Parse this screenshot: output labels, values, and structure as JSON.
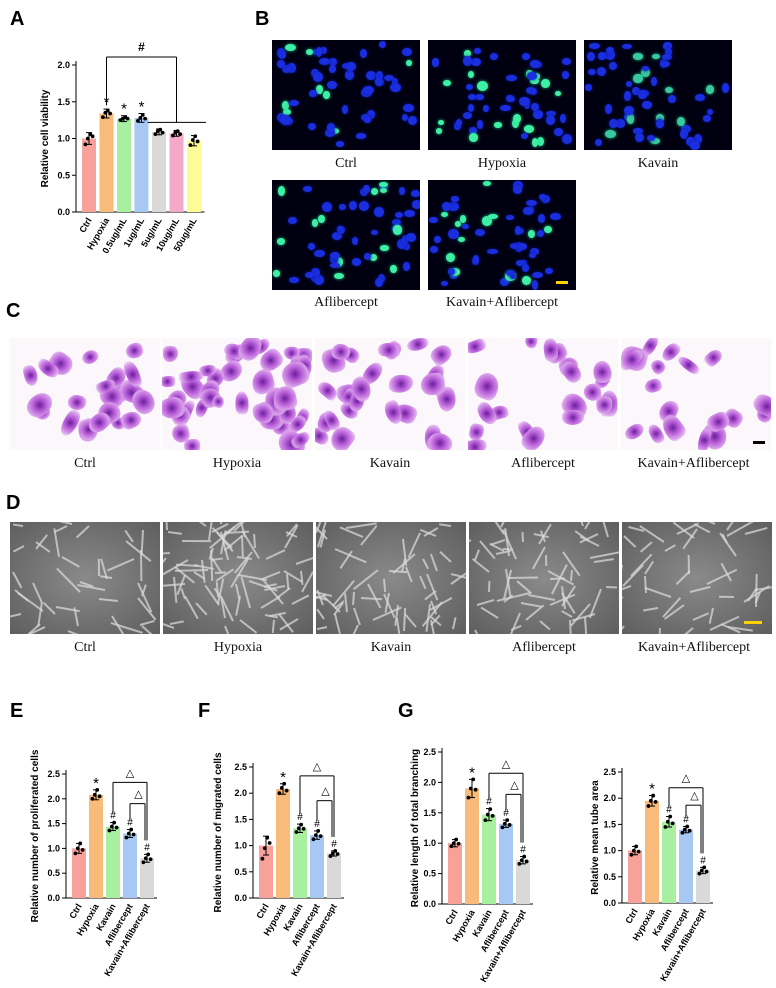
{
  "panels": {
    "a": "A",
    "b": "B",
    "c": "C",
    "d": "D",
    "e": "E",
    "f": "F",
    "g": "G"
  },
  "panel_b": {
    "captions": [
      "Ctrl",
      "Hypoxia",
      "Kavain",
      "Aflibercept",
      "Kavain+Aflibercept"
    ]
  },
  "panel_c": {
    "captions": [
      "Ctrl",
      "Hypoxia",
      "Kavain",
      "Aflibercept",
      "Kavain+Aflibercept"
    ]
  },
  "panel_d": {
    "captions": [
      "Ctrl",
      "Hypoxia",
      "Kavain",
      "Aflibercept",
      "Kavain+Aflibercept"
    ]
  },
  "colors": {
    "ctrl": "#f7a19a",
    "hypoxia": "#f9bb7a",
    "green": "#a8f0a0",
    "blue": "#a6c8f2",
    "gray": "#d9d9d9",
    "pink": "#f4a9c8",
    "yellow": "#fdfb95",
    "scalebar": "#ffd000"
  },
  "chart_data": [
    {
      "panel": "A",
      "type": "bar",
      "ylabel": "Relative cell viability",
      "ylim": [
        0,
        2.0
      ],
      "yticks": [
        "0.0",
        "0.5",
        "1.0",
        "1.5",
        "2.0"
      ],
      "categories": [
        "Ctrl",
        "Hypoxia",
        "0.5ug/mL",
        "1ug/mL",
        "5ug/mL",
        "10ug/mL",
        "50ug/mL"
      ],
      "values": [
        1.0,
        1.34,
        1.27,
        1.28,
        1.09,
        1.07,
        0.97
      ],
      "errors": [
        0.08,
        0.06,
        0.04,
        0.06,
        0.04,
        0.04,
        0.07
      ],
      "points": [
        [
          0.92,
          1.0,
          1.06,
          1.03
        ],
        [
          1.29,
          1.35,
          1.38,
          1.34
        ],
        [
          1.25,
          1.27,
          1.29,
          1.27
        ],
        [
          1.24,
          1.28,
          1.32,
          1.27
        ],
        [
          1.06,
          1.1,
          1.12,
          1.08
        ],
        [
          1.04,
          1.08,
          1.1,
          1.06
        ],
        [
          0.91,
          0.98,
          1.03,
          0.96
        ]
      ],
      "colors": [
        "#f7a19a",
        "#f9bb7a",
        "#a8f0a0",
        "#a6c8f2",
        "#d9d9d9",
        "#f4a9c8",
        "#fdfb95"
      ],
      "marks": [
        "",
        "*",
        "*",
        "*",
        "",
        "",
        ""
      ],
      "bracket_mark": "#"
    },
    {
      "panel": "E",
      "type": "bar",
      "ylabel": "Relative number of proliferated cells",
      "ylim": [
        0,
        2.5
      ],
      "yticks": [
        "0.0",
        "0.5",
        "1.0",
        "1.5",
        "2.0",
        "2.5"
      ],
      "categories": [
        "Ctrl",
        "Hypoxia",
        "Kavain",
        "Aflibercept",
        "Kavain+Aflibercept"
      ],
      "values": [
        1.0,
        2.08,
        1.44,
        1.3,
        0.8
      ],
      "errors": [
        0.1,
        0.1,
        0.08,
        0.08,
        0.08
      ],
      "points": [
        [
          0.9,
          1.0,
          1.1,
          0.97
        ],
        [
          2.0,
          2.08,
          2.18,
          2.05
        ],
        [
          1.36,
          1.44,
          1.52,
          1.42
        ],
        [
          1.22,
          1.3,
          1.38,
          1.28
        ],
        [
          0.72,
          0.8,
          0.88,
          0.78
        ]
      ],
      "colors": [
        "#f7a19a",
        "#f9bb7a",
        "#a8f0a0",
        "#a6c8f2",
        "#d9d9d9"
      ],
      "marks": [
        "",
        "*",
        "#",
        "#",
        "#"
      ],
      "bracket_mark": "△"
    },
    {
      "panel": "F",
      "type": "bar",
      "ylabel": "Relative number of migrated cells",
      "ylim": [
        0,
        2.5
      ],
      "yticks": [
        "0.0",
        "0.5",
        "1.0",
        "1.5",
        "2.0",
        "2.5"
      ],
      "categories": [
        "Ctrl",
        "Hypoxia",
        "Kavain",
        "Aflibercept",
        "Kavain+Aflibercept"
      ],
      "values": [
        1.0,
        2.08,
        1.33,
        1.2,
        0.85
      ],
      "errors": [
        0.18,
        0.1,
        0.08,
        0.08,
        0.05
      ],
      "points": [
        [
          0.75,
          0.95,
          1.15,
          1.05
        ],
        [
          2.0,
          2.1,
          2.18,
          2.05
        ],
        [
          1.26,
          1.33,
          1.4,
          1.32
        ],
        [
          1.12,
          1.2,
          1.28,
          1.18
        ],
        [
          0.8,
          0.85,
          0.9,
          0.84
        ]
      ],
      "colors": [
        "#f7a19a",
        "#f9bb7a",
        "#a8f0a0",
        "#a6c8f2",
        "#d9d9d9"
      ],
      "marks": [
        "",
        "*",
        "#",
        "#",
        "#"
      ],
      "bracket_mark": "△"
    },
    {
      "panel": "G",
      "type": "bar",
      "ylabel": "Relative length of total branching",
      "ylim": [
        0,
        2.5
      ],
      "yticks": [
        "0.0",
        "0.5",
        "1.0",
        "1.5",
        "2.0",
        "2.5"
      ],
      "categories": [
        "Ctrl",
        "Hypoxia",
        "Kavain",
        "Aflibercept",
        "Kavain+Aflibercept"
      ],
      "values": [
        1.0,
        1.9,
        1.47,
        1.32,
        0.72
      ],
      "errors": [
        0.06,
        0.15,
        0.1,
        0.06,
        0.06
      ],
      "points": [
        [
          0.95,
          1.0,
          1.06,
          0.99
        ],
        [
          1.75,
          1.9,
          2.05,
          1.88
        ],
        [
          1.38,
          1.47,
          1.56,
          1.45
        ],
        [
          1.26,
          1.32,
          1.38,
          1.3
        ],
        [
          0.66,
          0.72,
          0.78,
          0.7
        ]
      ],
      "colors": [
        "#f7a19a",
        "#f9bb7a",
        "#a8f0a0",
        "#a6c8f2",
        "#d9d9d9"
      ],
      "marks": [
        "",
        "*",
        "#",
        "#",
        "#"
      ],
      "bracket_mark": "△"
    },
    {
      "panel": "G",
      "type": "bar",
      "ylabel": "Relative mean tube area",
      "ylim": [
        0,
        2.5
      ],
      "yticks": [
        "0.0",
        "0.5",
        "1.0",
        "1.5",
        "2.0",
        "2.5"
      ],
      "categories": [
        "Ctrl",
        "Hypoxia",
        "Kavain",
        "Aflibercept",
        "Kavain+Aflibercept"
      ],
      "values": [
        1.0,
        1.95,
        1.55,
        1.4,
        0.62
      ],
      "errors": [
        0.08,
        0.1,
        0.1,
        0.06,
        0.06
      ],
      "points": [
        [
          0.92,
          1.0,
          1.08,
          0.98
        ],
        [
          1.85,
          1.95,
          2.05,
          1.93
        ],
        [
          1.45,
          1.55,
          1.65,
          1.52
        ],
        [
          1.34,
          1.4,
          1.46,
          1.38
        ],
        [
          0.56,
          0.62,
          0.68,
          0.6
        ]
      ],
      "colors": [
        "#f7a19a",
        "#f9bb7a",
        "#a8f0a0",
        "#a6c8f2",
        "#d9d9d9"
      ],
      "marks": [
        "",
        "*",
        "#",
        "#",
        "#"
      ],
      "bracket_mark": "△"
    }
  ]
}
